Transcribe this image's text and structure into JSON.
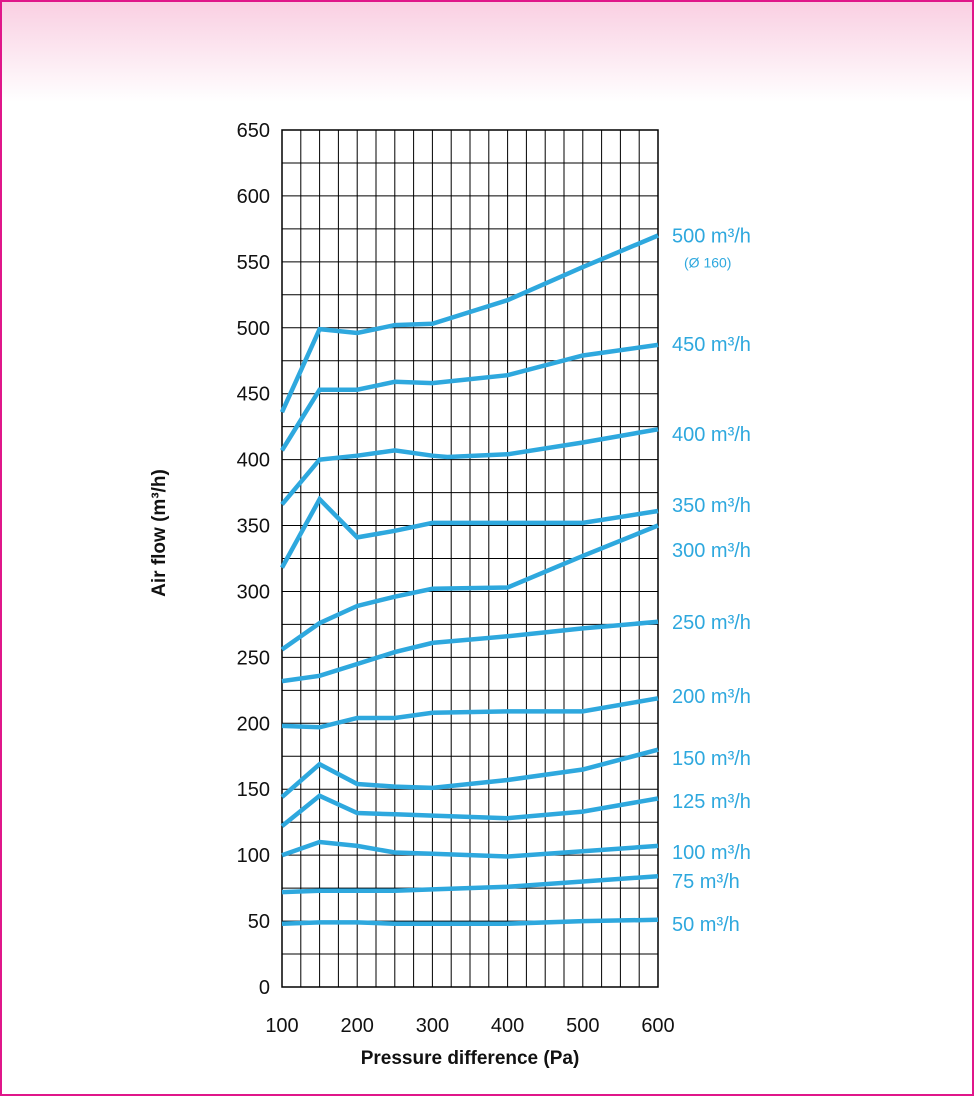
{
  "chart_data": {
    "type": "line",
    "title": "",
    "xlabel": "Pressure difference (Pa)",
    "ylabel": "Air flow (m³/h)",
    "xlim": [
      100,
      600
    ],
    "ylim": [
      0,
      650
    ],
    "x_ticks": [
      "100",
      "200",
      "300",
      "400",
      "500",
      "600"
    ],
    "y_ticks": [
      "0",
      "50",
      "100",
      "150",
      "200",
      "250",
      "300",
      "350",
      "400",
      "450",
      "500",
      "550",
      "600",
      "650"
    ],
    "grid": true,
    "line_color": "#2ea8de",
    "series": [
      {
        "name": "500 m³/h",
        "note": "(Ø 160)",
        "points": [
          [
            100,
            436
          ],
          [
            150,
            499
          ],
          [
            200,
            496
          ],
          [
            250,
            502
          ],
          [
            300,
            503
          ],
          [
            400,
            521
          ],
          [
            500,
            546
          ],
          [
            600,
            570
          ]
        ]
      },
      {
        "name": "450 m³/h",
        "points": [
          [
            100,
            407
          ],
          [
            150,
            453
          ],
          [
            200,
            453
          ],
          [
            250,
            459
          ],
          [
            300,
            458
          ],
          [
            400,
            464
          ],
          [
            500,
            479
          ],
          [
            600,
            487
          ]
        ]
      },
      {
        "name": "400 m³/h",
        "points": [
          [
            100,
            366
          ],
          [
            150,
            400
          ],
          [
            200,
            403
          ],
          [
            250,
            407
          ],
          [
            300,
            403
          ],
          [
            320,
            402
          ],
          [
            400,
            404
          ],
          [
            500,
            413
          ],
          [
            600,
            423
          ]
        ]
      },
      {
        "name": "350 m³/h",
        "points": [
          [
            100,
            318
          ],
          [
            150,
            370
          ],
          [
            200,
            341
          ],
          [
            250,
            346
          ],
          [
            300,
            352
          ],
          [
            400,
            352
          ],
          [
            500,
            352
          ],
          [
            600,
            361
          ]
        ]
      },
      {
        "name": "300 m³/h",
        "points": [
          [
            100,
            256
          ],
          [
            150,
            276
          ],
          [
            200,
            289
          ],
          [
            250,
            296
          ],
          [
            300,
            302
          ],
          [
            400,
            303
          ],
          [
            500,
            327
          ],
          [
            600,
            350
          ]
        ]
      },
      {
        "name": "250 m³/h",
        "points": [
          [
            100,
            232
          ],
          [
            150,
            236
          ],
          [
            200,
            245
          ],
          [
            250,
            254
          ],
          [
            300,
            261
          ],
          [
            400,
            266
          ],
          [
            500,
            272
          ],
          [
            600,
            277
          ]
        ]
      },
      {
        "name": "200 m³/h",
        "points": [
          [
            100,
            198
          ],
          [
            150,
            197
          ],
          [
            200,
            204
          ],
          [
            250,
            204
          ],
          [
            300,
            208
          ],
          [
            400,
            209
          ],
          [
            500,
            209
          ],
          [
            600,
            219
          ]
        ]
      },
      {
        "name": "150 m³/h",
        "points": [
          [
            100,
            144
          ],
          [
            150,
            169
          ],
          [
            200,
            154
          ],
          [
            250,
            152
          ],
          [
            300,
            151
          ],
          [
            400,
            157
          ],
          [
            500,
            165
          ],
          [
            600,
            180
          ]
        ]
      },
      {
        "name": "125 m³/h",
        "points": [
          [
            100,
            122
          ],
          [
            150,
            145
          ],
          [
            200,
            132
          ],
          [
            250,
            131
          ],
          [
            300,
            130
          ],
          [
            400,
            128
          ],
          [
            500,
            133
          ],
          [
            600,
            143
          ]
        ]
      },
      {
        "name": "100 m³/h",
        "points": [
          [
            100,
            100
          ],
          [
            150,
            110
          ],
          [
            200,
            107
          ],
          [
            250,
            102
          ],
          [
            300,
            101
          ],
          [
            400,
            99
          ],
          [
            500,
            103
          ],
          [
            600,
            107
          ]
        ]
      },
      {
        "name": "75 m³/h",
        "points": [
          [
            100,
            72
          ],
          [
            150,
            73
          ],
          [
            200,
            73
          ],
          [
            250,
            73
          ],
          [
            300,
            74
          ],
          [
            400,
            76
          ],
          [
            500,
            80
          ],
          [
            600,
            84
          ]
        ]
      },
      {
        "name": "50 m³/h",
        "points": [
          [
            100,
            48
          ],
          [
            150,
            49
          ],
          [
            200,
            49
          ],
          [
            250,
            48
          ],
          [
            300,
            48
          ],
          [
            400,
            48
          ],
          [
            500,
            50
          ],
          [
            600,
            51
          ]
        ]
      }
    ]
  }
}
